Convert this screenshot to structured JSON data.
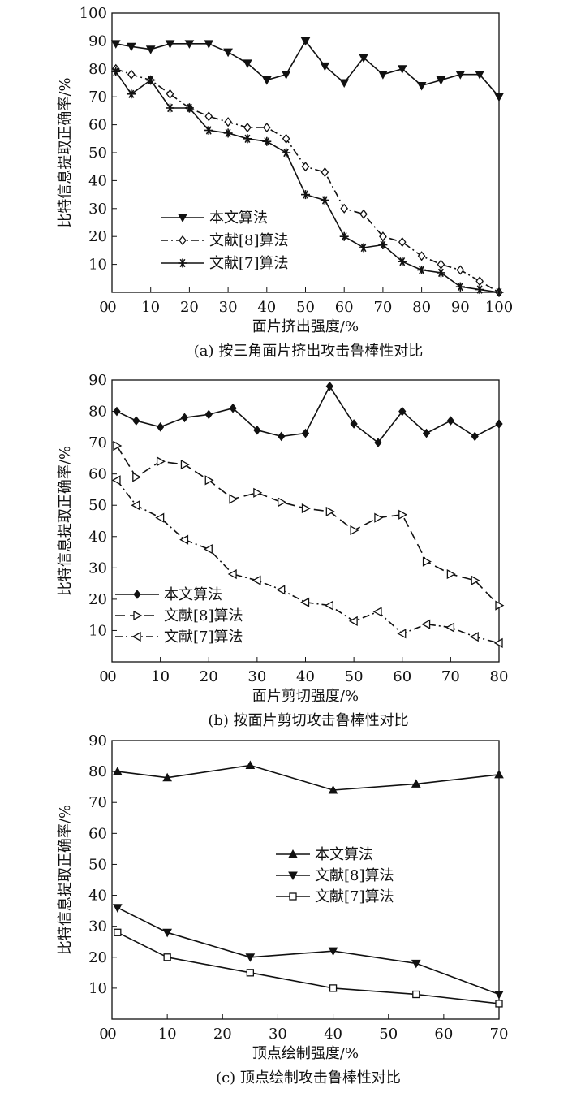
{
  "figure": {
    "line_color": "#111111",
    "background": "#ffffff"
  },
  "chart_data": [
    {
      "id": "a",
      "type": "line",
      "caption": "(a) 按三角面片挤出攻击鲁棒性对比",
      "xlabel": "面片挤出强度/%",
      "ylabel": "比特信息提取正确率/%",
      "xlim": [
        0,
        100
      ],
      "ylim": [
        0,
        100
      ],
      "xticks": [
        0,
        10,
        20,
        30,
        40,
        50,
        60,
        70,
        80,
        90,
        100
      ],
      "yticks": [
        10,
        20,
        30,
        40,
        50,
        60,
        70,
        80,
        90,
        100
      ],
      "legend_position": "lower-left",
      "series": [
        {
          "name": "本文算法",
          "marker": "triangle-down",
          "dash": "solid",
          "x": [
            1,
            5,
            10,
            15,
            20,
            25,
            30,
            35,
            40,
            45,
            50,
            55,
            60,
            65,
            70,
            75,
            80,
            85,
            90,
            95,
            100
          ],
          "y": [
            89,
            88,
            87,
            89,
            89,
            89,
            86,
            82,
            76,
            78,
            90,
            81,
            75,
            84,
            78,
            80,
            74,
            76,
            78,
            78,
            70
          ]
        },
        {
          "name": "文献[8]算法",
          "marker": "diamond",
          "dash": "dashdot",
          "x": [
            1,
            5,
            10,
            15,
            20,
            25,
            30,
            35,
            40,
            45,
            50,
            55,
            60,
            65,
            70,
            75,
            80,
            85,
            90,
            95,
            100
          ],
          "y": [
            80,
            78,
            76,
            71,
            66,
            63,
            61,
            59,
            59,
            55,
            45,
            43,
            30,
            28,
            20,
            18,
            13,
            10,
            8,
            4,
            0
          ]
        },
        {
          "name": "文献[7]算法",
          "marker": "asterisk",
          "dash": "solid",
          "x": [
            1,
            5,
            10,
            15,
            20,
            25,
            30,
            35,
            40,
            45,
            50,
            55,
            60,
            65,
            70,
            75,
            80,
            85,
            90,
            95,
            100
          ],
          "y": [
            79,
            71,
            76,
            66,
            66,
            58,
            57,
            55,
            54,
            50,
            35,
            33,
            20,
            16,
            17,
            11,
            8,
            7,
            2,
            1,
            0
          ]
        }
      ]
    },
    {
      "id": "b",
      "type": "line",
      "caption": "(b) 按面片剪切攻击鲁棒性对比",
      "xlabel": "面片剪切强度/%",
      "ylabel": "比特信息提取正确率/%",
      "xlim": [
        0,
        80
      ],
      "ylim": [
        0,
        90
      ],
      "xticks": [
        0,
        10,
        20,
        30,
        40,
        50,
        60,
        70,
        80
      ],
      "yticks": [
        10,
        20,
        30,
        40,
        50,
        60,
        70,
        80,
        90
      ],
      "legend_position": "lower-left",
      "series": [
        {
          "name": "本文算法",
          "marker": "diamond-filled",
          "dash": "solid",
          "x": [
            1,
            5,
            10,
            15,
            20,
            25,
            30,
            35,
            40,
            45,
            50,
            55,
            60,
            65,
            70,
            75,
            80
          ],
          "y": [
            80,
            77,
            75,
            78,
            79,
            81,
            74,
            72,
            73,
            88,
            76,
            70,
            80,
            73,
            77,
            72,
            76
          ]
        },
        {
          "name": "文献[8]算法",
          "marker": "triangle-right",
          "dash": "longdash",
          "x": [
            1,
            5,
            10,
            15,
            20,
            25,
            30,
            35,
            40,
            45,
            50,
            55,
            60,
            65,
            70,
            75,
            80
          ],
          "y": [
            69,
            59,
            64,
            63,
            58,
            52,
            54,
            51,
            49,
            48,
            42,
            46,
            47,
            32,
            28,
            26,
            18
          ]
        },
        {
          "name": "文献[7]算法",
          "marker": "triangle-left",
          "dash": "dashdot",
          "x": [
            1,
            5,
            10,
            15,
            20,
            25,
            30,
            35,
            40,
            45,
            50,
            55,
            60,
            65,
            70,
            75,
            80
          ],
          "y": [
            58,
            50,
            46,
            39,
            36,
            28,
            26,
            23,
            19,
            18,
            13,
            16,
            9,
            12,
            11,
            8,
            6
          ]
        }
      ]
    },
    {
      "id": "c",
      "type": "line",
      "caption": "(c) 顶点绘制攻击鲁棒性对比",
      "xlabel": "顶点绘制强度/%",
      "ylabel": "比特信息提取正确率/%",
      "xlim": [
        0,
        70
      ],
      "ylim": [
        0,
        90
      ],
      "xticks": [
        0,
        10,
        20,
        30,
        40,
        50,
        60,
        70
      ],
      "yticks": [
        10,
        20,
        30,
        40,
        50,
        60,
        70,
        80,
        90
      ],
      "legend_position": "center-right",
      "series": [
        {
          "name": "本文算法",
          "marker": "triangle-up",
          "dash": "solid",
          "x": [
            1,
            10,
            25,
            40,
            55,
            70
          ],
          "y": [
            80,
            78,
            82,
            74,
            76,
            79
          ]
        },
        {
          "name": "文献[8]算法",
          "marker": "triangle-down",
          "dash": "solid",
          "x": [
            1,
            10,
            25,
            40,
            55,
            70
          ],
          "y": [
            36,
            28,
            20,
            22,
            18,
            8
          ]
        },
        {
          "name": "文献[7]算法",
          "marker": "square",
          "dash": "solid",
          "x": [
            1,
            10,
            25,
            40,
            55,
            70
          ],
          "y": [
            28,
            20,
            15,
            10,
            8,
            5
          ]
        }
      ]
    }
  ]
}
